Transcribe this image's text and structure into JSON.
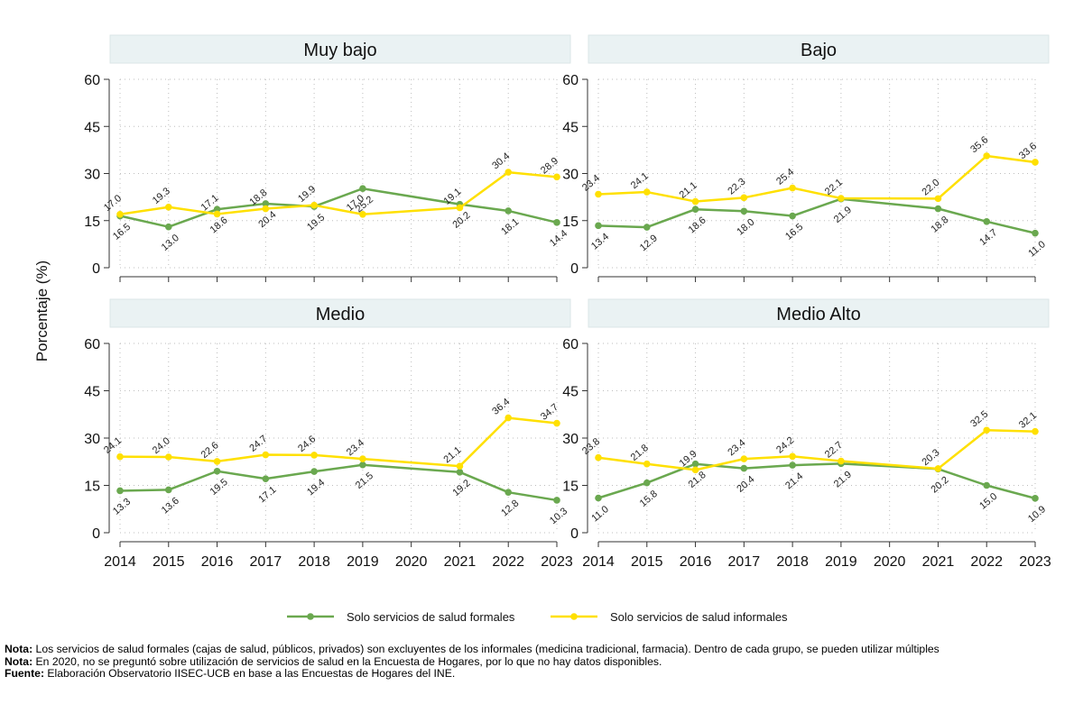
{
  "chart_data": {
    "type": "line",
    "ylabel": "Porcentaje (%)",
    "xlabel": "",
    "ylim": [
      0,
      60
    ],
    "yticks": [
      0,
      15,
      30,
      45,
      60
    ],
    "xticks": [
      "2014",
      "2015",
      "2016",
      "2017",
      "2018",
      "2019",
      "2020",
      "2021",
      "2022",
      "2023"
    ],
    "grid": true,
    "legend_position": "bottom",
    "colors": {
      "formales": "#6aa84f",
      "informales": "#ffe000"
    },
    "legend": {
      "formales": "Solo servicios de salud formales",
      "informales": "Solo servicios de salud informales"
    },
    "panels": [
      {
        "title": "Muy bajo",
        "x": [
          2014,
          2015,
          2016,
          2017,
          2018,
          2019,
          2021,
          2022,
          2023
        ],
        "series": [
          {
            "name": "Solo servicios de salud formales",
            "values": [
              16.5,
              13.0,
              18.6,
              20.4,
              19.5,
              25.2,
              20.2,
              18.1,
              14.4
            ],
            "labels": [
              "16.5",
              "13.0",
              "18.6",
              "20.4",
              "19.5",
              "25.2",
              "20.2",
              "18.1",
              "14.4"
            ]
          },
          {
            "name": "Solo servicios de salud informales",
            "values": [
              17.0,
              19.3,
              17.1,
              18.8,
              19.9,
              17.0,
              19.1,
              30.4,
              28.9
            ],
            "labels": [
              "17.0",
              "19.3",
              "17.1",
              "18.8",
              "19.9",
              "17.0",
              "19.1",
              "30.4",
              "28.9"
            ]
          }
        ]
      },
      {
        "title": "Bajo",
        "x": [
          2014,
          2015,
          2016,
          2017,
          2018,
          2019,
          2021,
          2022,
          2023
        ],
        "series": [
          {
            "name": "Solo servicios de salud formales",
            "values": [
              13.4,
              12.9,
              18.6,
              18.0,
              16.5,
              21.9,
              18.8,
              14.7,
              11.0
            ],
            "labels": [
              "13.4",
              "12.9",
              "18.6",
              "18.0",
              "16.5",
              "21.9",
              "18.8",
              "14.7",
              "11.0"
            ]
          },
          {
            "name": "Solo servicios de salud informales",
            "values": [
              23.4,
              24.1,
              21.1,
              22.3,
              25.4,
              22.1,
              22.0,
              35.6,
              33.6
            ],
            "labels": [
              "23.4",
              "24.1",
              "21.1",
              "22.3",
              "25.4",
              "22.1",
              "22.0",
              "35.6",
              "33.6"
            ]
          }
        ]
      },
      {
        "title": "Medio",
        "x": [
          2014,
          2015,
          2016,
          2017,
          2018,
          2019,
          2021,
          2022,
          2023
        ],
        "series": [
          {
            "name": "Solo servicios de salud formales",
            "values": [
              13.3,
              13.6,
              19.5,
              17.1,
              19.4,
              21.5,
              19.2,
              12.8,
              10.3
            ],
            "labels": [
              "13.3",
              "13.6",
              "19.5",
              "17.1",
              "19.4",
              "21.5",
              "19.2",
              "12.8",
              "10.3"
            ]
          },
          {
            "name": "Solo servicios de salud informales",
            "values": [
              24.1,
              24.0,
              22.6,
              24.7,
              24.6,
              23.4,
              21.1,
              36.4,
              34.7
            ],
            "labels": [
              "24.1",
              "24.0",
              "22.6",
              "24.7",
              "24.6",
              "23.4",
              "21.1",
              "36.4",
              "34.7"
            ]
          }
        ]
      },
      {
        "title": "Medio Alto",
        "x": [
          2014,
          2015,
          2016,
          2017,
          2018,
          2019,
          2021,
          2022,
          2023
        ],
        "series": [
          {
            "name": "Solo servicios de salud formales",
            "values": [
              11.0,
              15.8,
              21.8,
              20.4,
              21.4,
              21.9,
              20.2,
              15.0,
              10.9
            ],
            "labels": [
              "11.0",
              "15.8",
              "21.8",
              "20.4",
              "21.4",
              "21.9",
              "20.2",
              "15.0",
              "10.9"
            ]
          },
          {
            "name": "Solo servicios de salud informales",
            "values": [
              23.8,
              21.8,
              19.9,
              23.4,
              24.2,
              22.7,
              20.3,
              32.5,
              32.1
            ],
            "labels": [
              "23.8",
              "21.8",
              "19.9",
              "23.4",
              "24.2",
              "22.7",
              "20.3",
              "32.5",
              "32.1"
            ]
          }
        ]
      }
    ]
  },
  "notes": [
    {
      "label": "Nota:",
      "text": " Los servicios de salud formales (cajas de salud, públicos, privados) son excluyentes de los informales (medicina tradicional, farmacia). Dentro de cada grupo, se pueden utilizar múltiples"
    },
    {
      "label": "Nota:",
      "text": " En 2020, no se preguntó sobre utilización de servicios de salud en la Encuesta de Hogares, por lo que no hay datos disponibles."
    },
    {
      "label": "Fuente:",
      "text": " Elaboración Observatorio IISEC-UCB en base a las Encuestas de Hogares del INE."
    }
  ]
}
